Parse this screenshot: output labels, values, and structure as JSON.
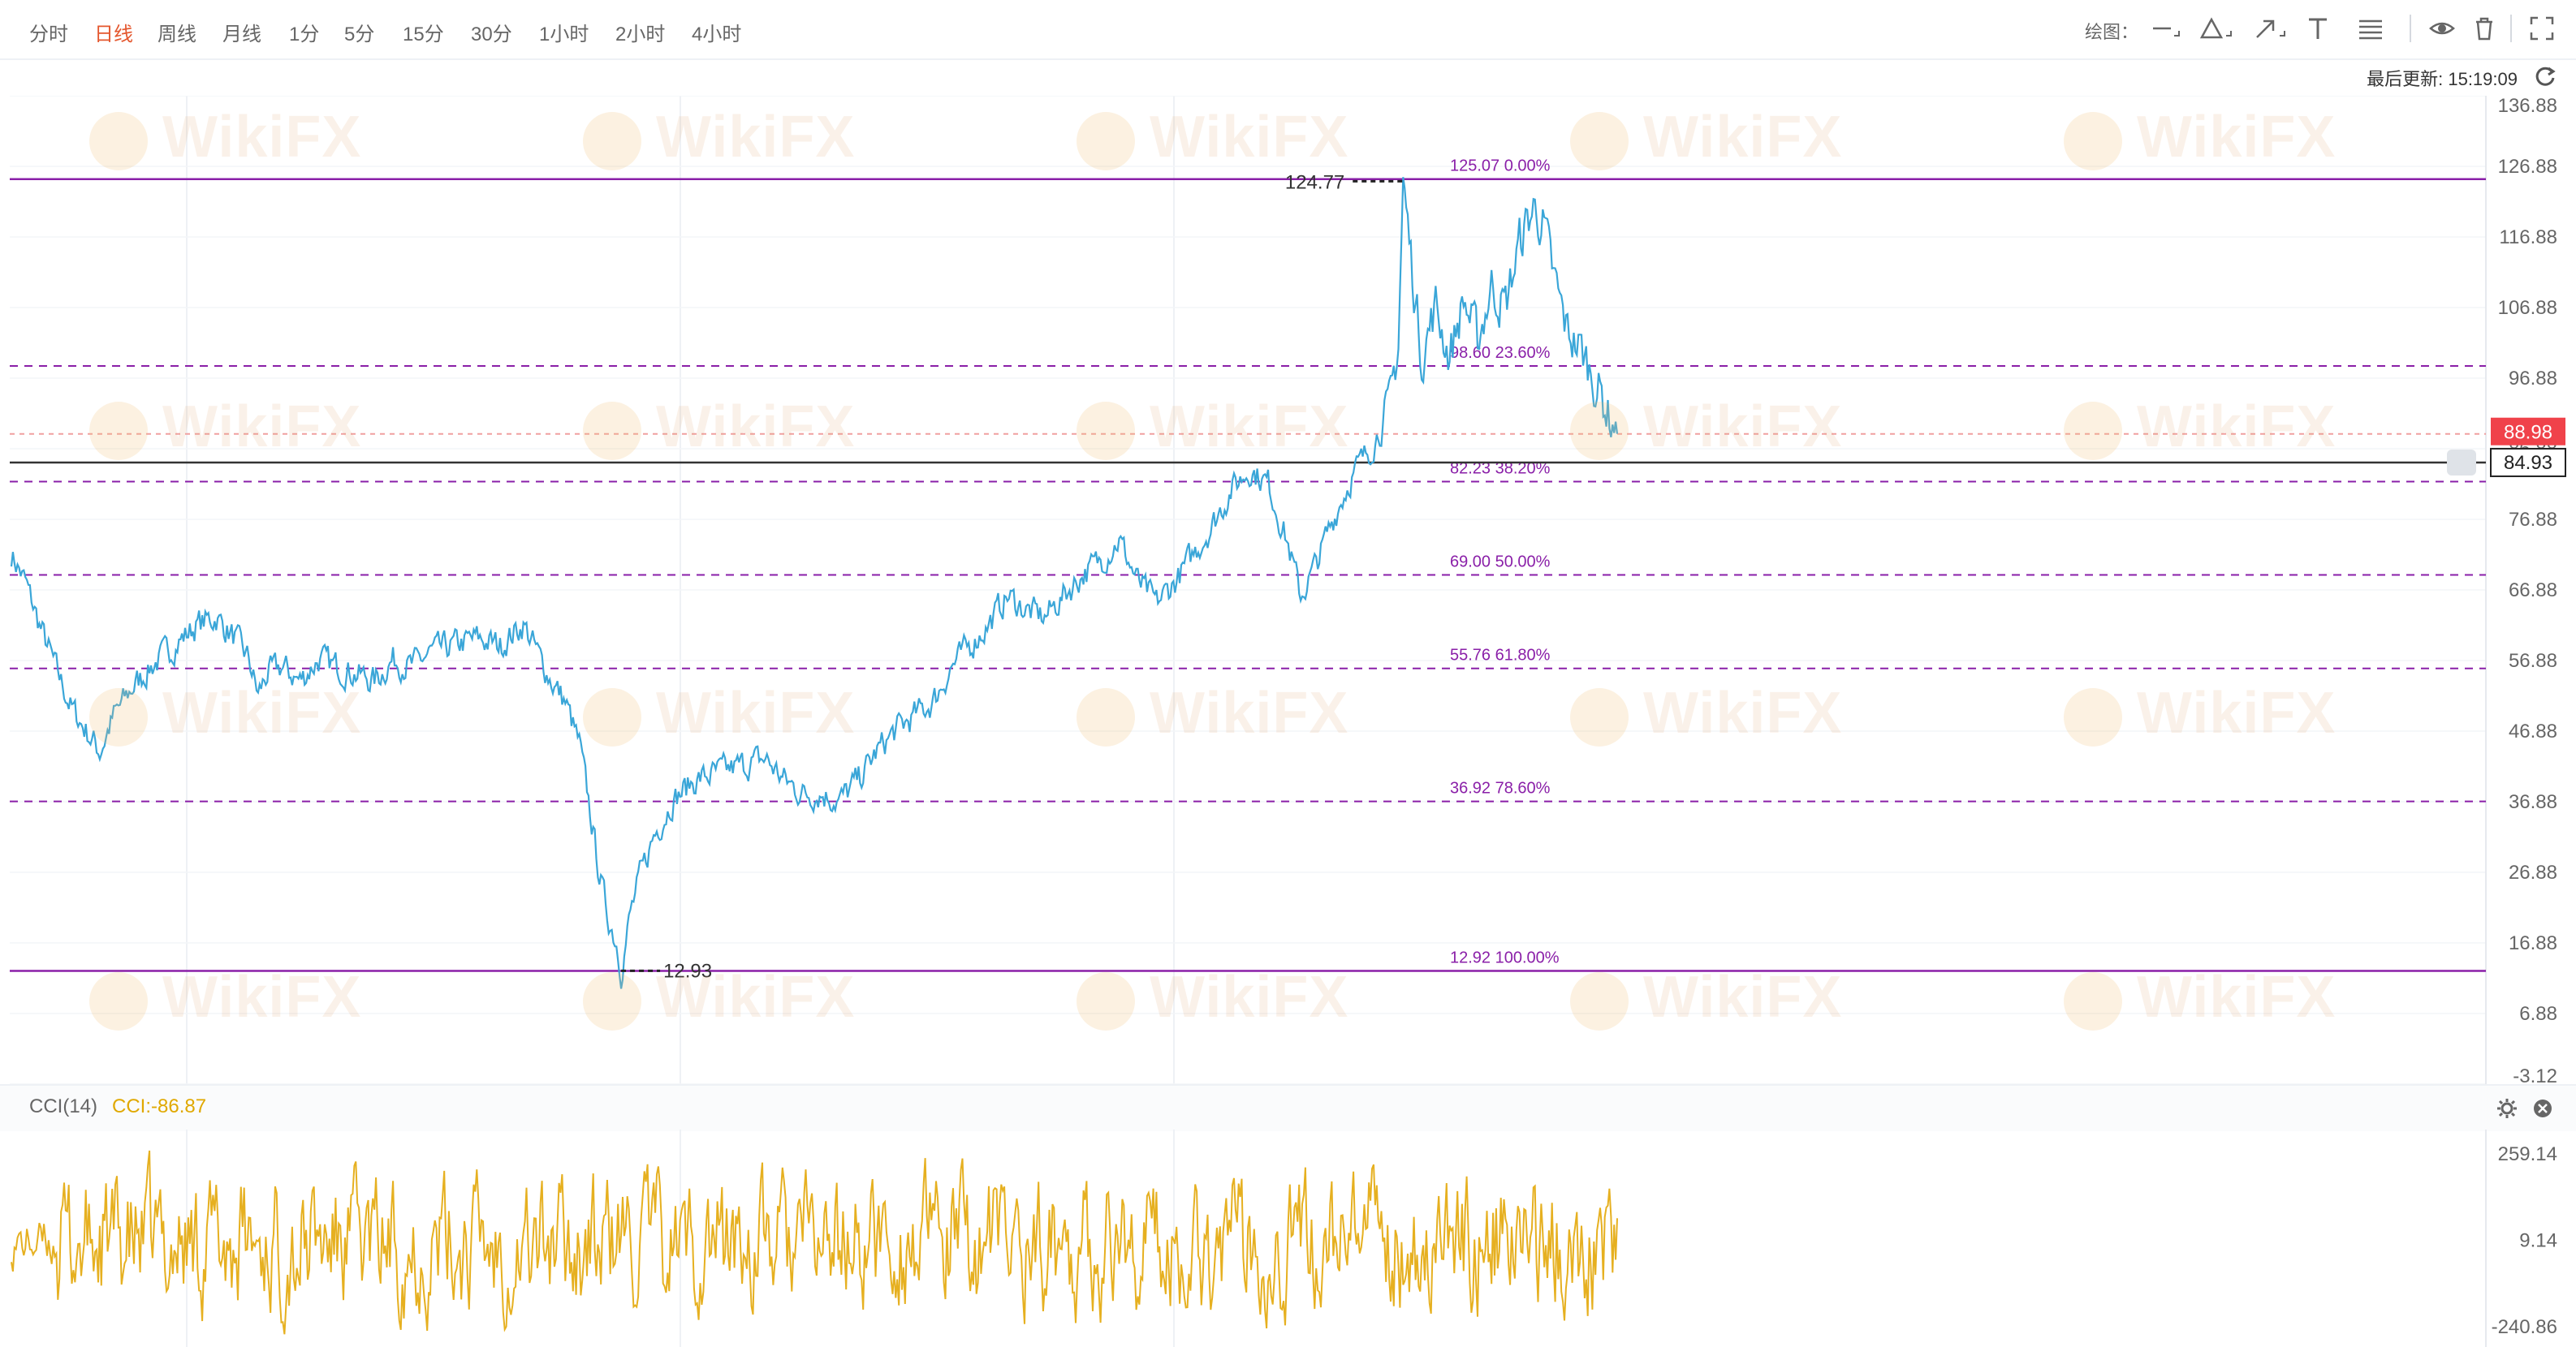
{
  "toolbar": {
    "timeframes": [
      "分时",
      "日线",
      "周线",
      "月线",
      "1分",
      "5分",
      "15分",
      "30分",
      "1小时",
      "2小时",
      "4小时"
    ],
    "active_timeframe": "日线",
    "draw_label": "绘图："
  },
  "status": {
    "last_update": "最后更新: 15:19:09"
  },
  "watermark": "WikiFX",
  "colors": {
    "price_line": "#3aa6d8",
    "fib_line": "#8a1fa8",
    "cci_line": "#e6b020",
    "current_price_badge": "#f0424a",
    "active_tab": "#e4572e"
  },
  "chart_data": [
    {
      "type": "line",
      "name": "price",
      "ylim": [
        -3.12,
        136.88
      ],
      "y_ticks": [
        "136.88",
        "126.88",
        "116.88",
        "106.88",
        "96.88",
        "86.88",
        "76.88",
        "66.88",
        "56.88",
        "46.88",
        "36.88",
        "26.88",
        "16.88",
        "6.88",
        "-3.12"
      ],
      "keypoints": [
        [
          0,
          72
        ],
        [
          3,
          68
        ],
        [
          6,
          62
        ],
        [
          10,
          55
        ],
        [
          13,
          50
        ],
        [
          16,
          47
        ],
        [
          19,
          44
        ],
        [
          22,
          49
        ],
        [
          26,
          53
        ],
        [
          30,
          56
        ],
        [
          35,
          59
        ],
        [
          40,
          62
        ],
        [
          44,
          63
        ],
        [
          48,
          60
        ],
        [
          51,
          57
        ],
        [
          53,
          52
        ],
        [
          55,
          55
        ],
        [
          58,
          56
        ],
        [
          62,
          54
        ],
        [
          66,
          57
        ],
        [
          70,
          56
        ],
        [
          74,
          55
        ],
        [
          78,
          54
        ],
        [
          82,
          57
        ],
        [
          86,
          56
        ],
        [
          90,
          58
        ],
        [
          95,
          59
        ],
        [
          100,
          60
        ],
        [
          105,
          59
        ],
        [
          110,
          62
        ],
        [
          113,
          58
        ],
        [
          116,
          54
        ],
        [
          119,
          51
        ],
        [
          122,
          45
        ],
        [
          124,
          37
        ],
        [
          126,
          28
        ],
        [
          128,
          21
        ],
        [
          130,
          17
        ],
        [
          131,
          13
        ],
        [
          133,
          21
        ],
        [
          135,
          26
        ],
        [
          138,
          32
        ],
        [
          142,
          37
        ],
        [
          147,
          40
        ],
        [
          152,
          41
        ],
        [
          157,
          42
        ],
        [
          162,
          43
        ],
        [
          166,
          40
        ],
        [
          170,
          38
        ],
        [
          174,
          38
        ],
        [
          178,
          37
        ],
        [
          182,
          40
        ],
        [
          186,
          44
        ],
        [
          190,
          47
        ],
        [
          194,
          49
        ],
        [
          198,
          51
        ],
        [
          202,
          56
        ],
        [
          206,
          59
        ],
        [
          210,
          62
        ],
        [
          214,
          66
        ],
        [
          218,
          64
        ],
        [
          222,
          63
        ],
        [
          226,
          66
        ],
        [
          230,
          69
        ],
        [
          234,
          71
        ],
        [
          238,
          74
        ],
        [
          242,
          68
        ],
        [
          246,
          65
        ],
        [
          250,
          68
        ],
        [
          254,
          72
        ],
        [
          258,
          76
        ],
        [
          262,
          81
        ],
        [
          266,
          84
        ],
        [
          270,
          82
        ],
        [
          274,
          74
        ],
        [
          277,
          66
        ],
        [
          280,
          70
        ],
        [
          284,
          77
        ],
        [
          288,
          83
        ],
        [
          292,
          87
        ],
        [
          296,
          92
        ],
        [
          298,
          102
        ],
        [
          299,
          124.77
        ],
        [
          301,
          112
        ],
        [
          303,
          100
        ],
        [
          306,
          107
        ],
        [
          309,
          100
        ],
        [
          312,
          108
        ],
        [
          315,
          102
        ],
        [
          318,
          110
        ],
        [
          321,
          107
        ],
        [
          324,
          116
        ],
        [
          327,
          121
        ],
        [
          329,
          119
        ],
        [
          331,
          112
        ],
        [
          334,
          104
        ],
        [
          337,
          101
        ],
        [
          340,
          97
        ],
        [
          343,
          92
        ],
        [
          345,
          89
        ]
      ],
      "cursor_price_line": 84.93,
      "current_price": 88.98,
      "swing_high": {
        "label": "124.77",
        "value": 124.77
      },
      "swing_low": {
        "label": "12.93",
        "value": 12.93
      },
      "fibonacci_levels": [
        {
          "value": 125.07,
          "label": "125.07 0.00%",
          "style": "solid"
        },
        {
          "value": 98.6,
          "label": "98.60 23.60%",
          "style": "dashed"
        },
        {
          "value": 82.23,
          "label": "82.23 38.20%",
          "style": "dashed"
        },
        {
          "value": 69.0,
          "label": "69.00 50.00%",
          "style": "dashed"
        },
        {
          "value": 55.76,
          "label": "55.76 61.80%",
          "style": "dashed"
        },
        {
          "value": 36.92,
          "label": "36.92 78.60%",
          "style": "dashed"
        },
        {
          "value": 12.92,
          "label": "12.92 100.00%",
          "style": "solid"
        }
      ],
      "current_price_label": "88.98",
      "cursor_price_label": "84.93"
    },
    {
      "type": "line",
      "name": "CCI(14)",
      "indicator_label": "CCI(14)",
      "value_label": "CCI:-86.87",
      "ylim": [
        -300,
        330
      ],
      "y_ticks": [
        "259.14",
        "9.14",
        "-240.86"
      ]
    }
  ]
}
